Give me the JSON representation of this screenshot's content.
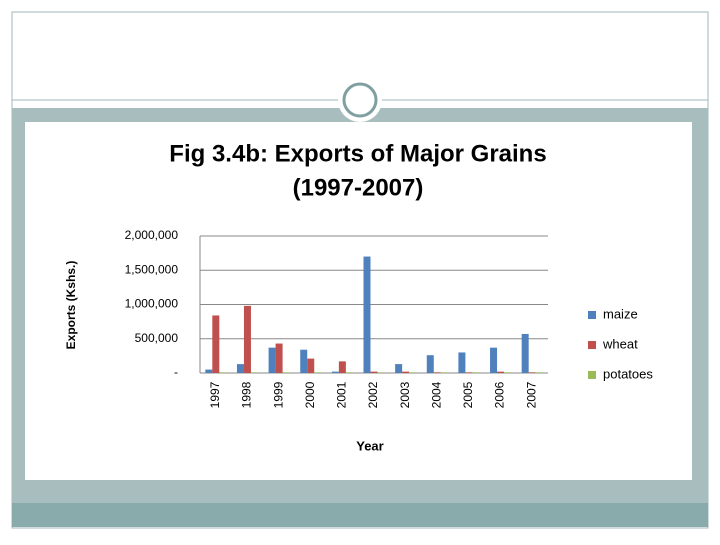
{
  "chart_data": {
    "type": "bar",
    "title": "Fig 3.4b: Exports of Major Grains",
    "subtitle": "(1997-2007)",
    "y_label": "Exports (Kshs.)",
    "x_label": "Year",
    "categories": [
      "1997",
      "1998",
      "1999",
      "2000",
      "2001",
      "2002",
      "2003",
      "2004",
      "2005",
      "2006",
      "2007"
    ],
    "series": [
      {
        "name": "maize",
        "color": "#4f81bd",
        "values": [
          50000,
          130000,
          370000,
          340000,
          20000,
          1700000,
          130000,
          260000,
          300000,
          370000,
          570000
        ]
      },
      {
        "name": "wheat",
        "color": "#c0504d",
        "values": [
          840000,
          980000,
          430000,
          210000,
          170000,
          20000,
          20000,
          10000,
          10000,
          20000,
          10000
        ]
      },
      {
        "name": "potatoes",
        "color": "#9bbb59",
        "values": [
          10000,
          10000,
          10000,
          10000,
          10000,
          10000,
          10000,
          10000,
          10000,
          10000,
          10000
        ]
      }
    ],
    "ylim": [
      0,
      2000000
    ],
    "yticks": [
      {
        "value": 0,
        "label": "-"
      },
      {
        "value": 500000,
        "label": "500,000"
      },
      {
        "value": 1000000,
        "label": "1,000,000"
      },
      {
        "value": 1500000,
        "label": "1,500,000"
      },
      {
        "value": 2000000,
        "label": "2,000,000"
      }
    ],
    "grid": true,
    "legend": "right"
  }
}
